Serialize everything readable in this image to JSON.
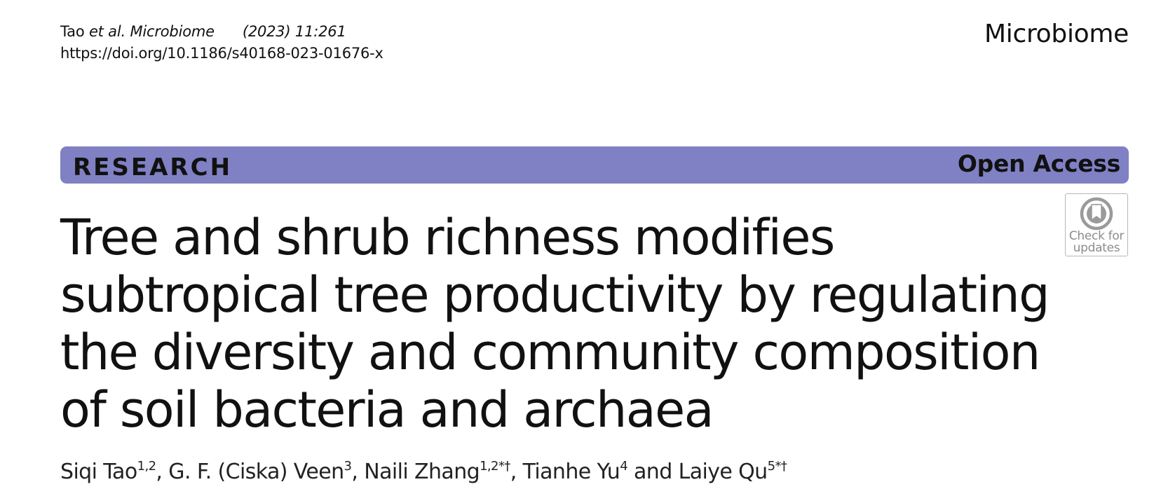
{
  "header": {
    "citation_author": "Tao",
    "citation_etal": "et al.",
    "citation_journal": "Microbiome",
    "citation_year_volume": "(2023) 11:261",
    "doi": "https://doi.org/10.1186/s40168-023-01676-x",
    "journal_name": "Microbiome"
  },
  "banner": {
    "label": "RESEARCH",
    "access": "Open Access",
    "color": "#8080c4"
  },
  "title": "Tree and shrub richness modifies subtropical tree productivity by regulating the diversity and community composition of soil bacteria and archaea",
  "check_updates": {
    "line1": "Check for",
    "line2": "updates",
    "icon": "bookmark-circle-icon"
  },
  "authors": [
    {
      "name": "Siqi Tao",
      "affil": "1,2",
      "sep": ", "
    },
    {
      "name": "G. F. (Ciska) Veen",
      "affil": "3",
      "sep": ", "
    },
    {
      "name": "Naili Zhang",
      "affil": "1,2*†",
      "sep": ", "
    },
    {
      "name": "Tianhe Yu",
      "affil": "4",
      "sep": " and "
    },
    {
      "name": "Laiye Qu",
      "affil": "5*†",
      "sep": ""
    }
  ]
}
